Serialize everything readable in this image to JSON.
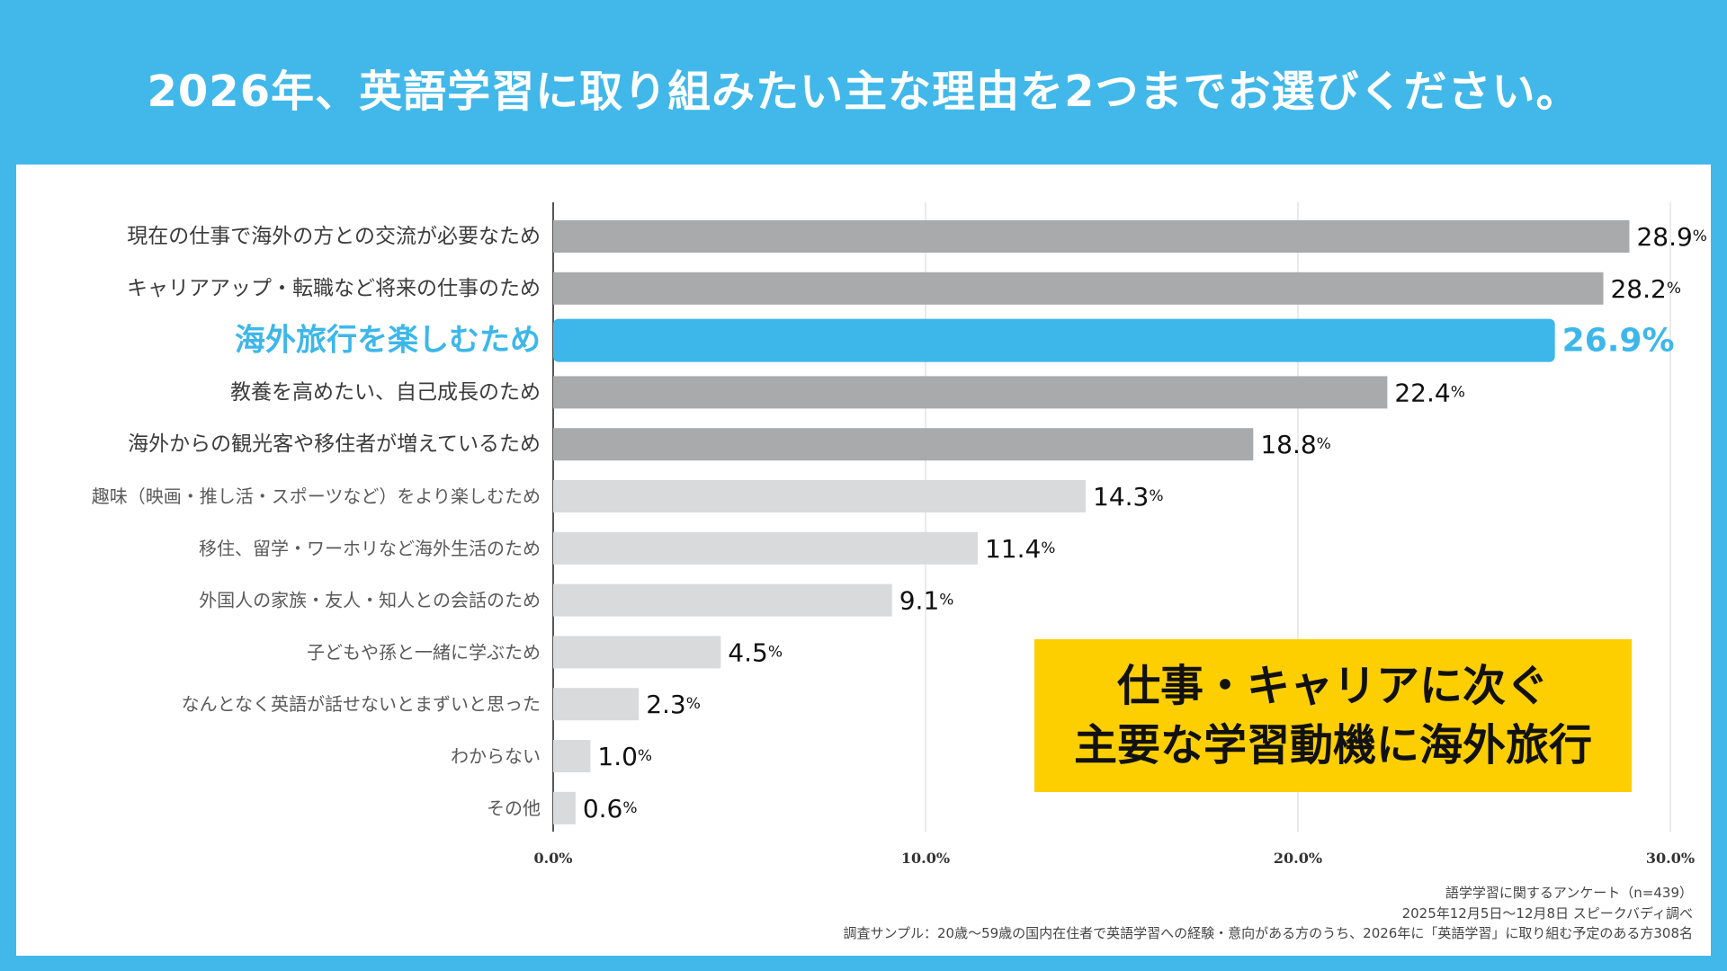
{
  "colors": {
    "background": "#41b8e9",
    "panel": "#ffffff",
    "highlight": "#3db7ea",
    "bar_dark": "#a9aaac",
    "bar_light": "#d9dadb",
    "callout": "#fdcf00",
    "label_text": "#3c3c3c",
    "highlight_text": "#3db7ea"
  },
  "chart_data": {
    "type": "bar",
    "orientation": "horizontal",
    "title": "2026年、英語学習に取り組みたい主な理由を2つまでお選びください。",
    "categories": [
      "現在の仕事で海外の方との交流が必要なため",
      "キャリアアップ・転職など将来の仕事のため",
      "海外旅行を楽しむため",
      "教養を高めたい、自己成長のため",
      "海外からの観光客や移住者が増えているため",
      "趣味（映画・推し活・スポーツなど）をより楽しむため",
      "移住、留学・ワーホリなど海外生活のため",
      "外国人の家族・友人・知人との会話のため",
      "子どもや孫と一緒に学ぶため",
      "なんとなく英語が話せないとまずいと思った",
      "わからない",
      "その他"
    ],
    "values": [
      28.9,
      28.2,
      26.9,
      22.4,
      18.8,
      14.3,
      11.4,
      9.1,
      4.5,
      2.3,
      1.0,
      0.6
    ],
    "value_labels": [
      "28.9",
      "28.2",
      "26.9",
      "22.4",
      "18.8",
      "14.3",
      "11.4",
      "9.1",
      "4.5",
      "2.3",
      "1.0",
      "0.6"
    ],
    "unit": "%",
    "styles": [
      "dark",
      "dark",
      "highlight",
      "dark",
      "dark",
      "light",
      "light",
      "light",
      "light",
      "light",
      "light",
      "light"
    ],
    "highlight_index": 2,
    "xlim": [
      0,
      30
    ],
    "x_ticks": [
      0,
      10,
      20,
      30
    ],
    "x_tick_labels": [
      "0.0%",
      "10.0%",
      "20.0%",
      "30.0%"
    ],
    "grid": true
  },
  "callout": {
    "line1": "仕事・キャリアに次ぐ",
    "line2": "主要な学習動機に海外旅行"
  },
  "footnotes": {
    "line1": "語学学習に関するアンケート（n=439）",
    "line2": "2025年12月5日～12月8日 スピークバディ調べ",
    "line3": "調査サンプル：20歳～59歳の国内在住者で英語学習への経験・意向がある方のうち、2026年に「英語学習」に取り組む予定のある方308名"
  }
}
